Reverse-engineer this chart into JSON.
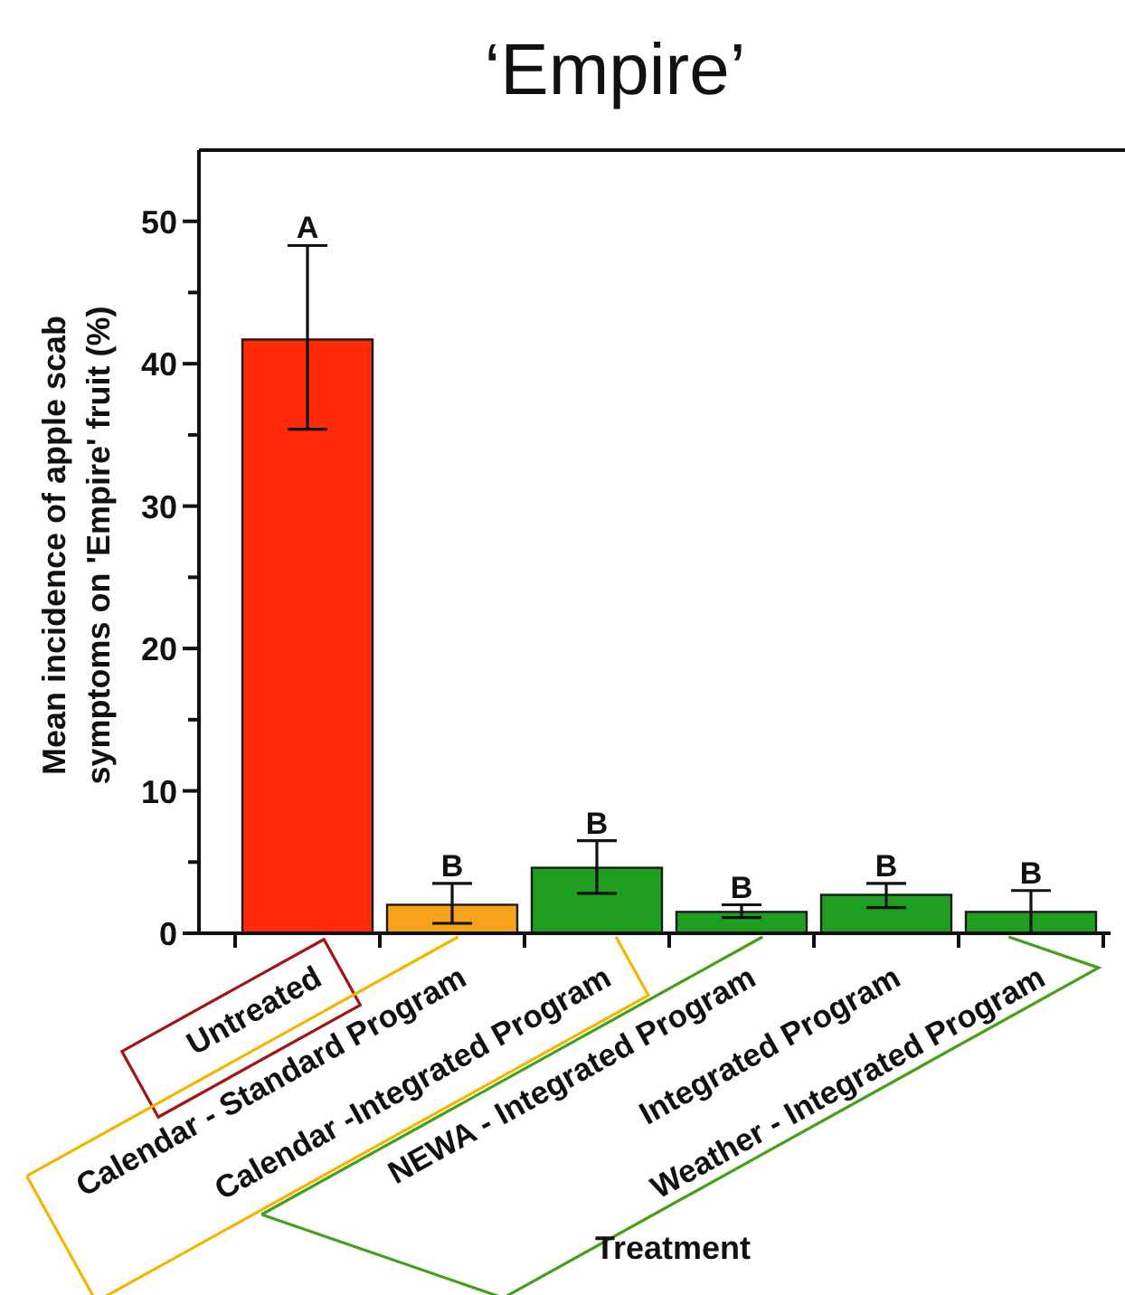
{
  "chart_data": {
    "type": "bar",
    "title": "‘Empire’",
    "xlabel": "Treatment",
    "ylabel": "Mean incidence of apple scab symptoms on 'Empire' fruit (%)",
    "categories": [
      "Untreated",
      "Calendar - Standard Program",
      "Calendar -Integrated Program",
      "NEWA - Integrated Program",
      "Integrated Program",
      "Weather - Integrated Program"
    ],
    "values": [
      41.7,
      2.0,
      4.6,
      1.5,
      2.7,
      1.5
    ],
    "colors": [
      "#ff2a0a",
      "#f7a21b",
      "#1f9e1f",
      "#1f9e1f",
      "#1f9e1f",
      "#1f9e1f"
    ],
    "errors": [
      [
        35.4,
        48.3
      ],
      [
        0.7,
        3.5
      ],
      [
        2.8,
        6.5
      ],
      [
        1.1,
        2.0
      ],
      [
        1.8,
        3.5
      ],
      [
        0,
        3.0
      ]
    ],
    "ylim": [
      0,
      55
    ],
    "yticks": [
      0,
      {
        "value": 5,
        "label": null
      },
      10,
      {
        "value": 15,
        "label": null
      },
      20,
      {
        "value": 25,
        "label": null
      },
      30,
      {
        "value": 35,
        "label": null
      },
      40,
      {
        "value": 45,
        "label": null
      },
      50
    ],
    "annotations": [
      {
        "text": "A",
        "x": "Untreated",
        "y": 48.3
      },
      {
        "text": "B",
        "x": "Calendar - Standard Program",
        "y": 3.5
      },
      {
        "text": "B",
        "x": "Calendar -Integrated Program",
        "y": 6.5
      },
      {
        "text": "B",
        "x": "NEWA - Integrated Program",
        "y": 2.0
      },
      {
        "text": "B",
        "x": "Integrated Program",
        "y": 3.5
      },
      {
        "text": "B",
        "x": "Weather - Integrated Program",
        "y": 3.0
      }
    ]
  }
}
